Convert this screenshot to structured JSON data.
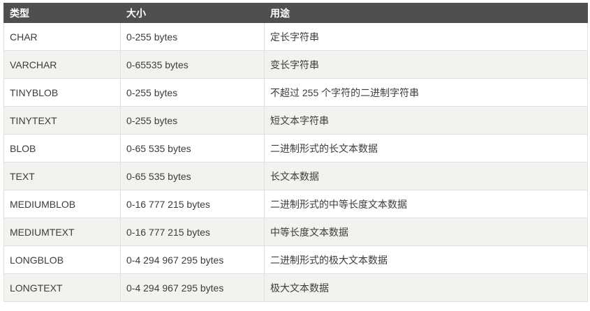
{
  "table": {
    "columns": [
      {
        "label": "类型"
      },
      {
        "label": "大小"
      },
      {
        "label": "用途"
      }
    ],
    "rows": [
      {
        "type": "CHAR",
        "size": "0-255 bytes",
        "usage": "定长字符串"
      },
      {
        "type": "VARCHAR",
        "size": "0-65535 bytes",
        "usage": "变长字符串"
      },
      {
        "type": "TINYBLOB",
        "size": "0-255 bytes",
        "usage": "不超过 255 个字符的二进制字符串"
      },
      {
        "type": "TINYTEXT",
        "size": "0-255 bytes",
        "usage": "短文本字符串"
      },
      {
        "type": "BLOB",
        "size": "0-65 535 bytes",
        "usage": "二进制形式的长文本数据"
      },
      {
        "type": "TEXT",
        "size": "0-65 535 bytes",
        "usage": "长文本数据"
      },
      {
        "type": "MEDIUMBLOB",
        "size": "0-16 777 215 bytes",
        "usage": "二进制形式的中等长度文本数据"
      },
      {
        "type": "MEDIUMTEXT",
        "size": "0-16 777 215 bytes",
        "usage": "中等长度文本数据"
      },
      {
        "type": "LONGBLOB",
        "size": "0-4 294 967 295 bytes",
        "usage": "二进制形式的极大文本数据"
      },
      {
        "type": "LONGTEXT",
        "size": "0-4 294 967 295 bytes",
        "usage": "极大文本数据"
      }
    ],
    "colors": {
      "header_bg": "#4f4f4f",
      "header_text": "#ffffff",
      "stripe_bg": "#f3f2ee",
      "row_bg": "#ffffff",
      "border": "#e0e0e0",
      "body_text": "#3c3c3c"
    }
  }
}
